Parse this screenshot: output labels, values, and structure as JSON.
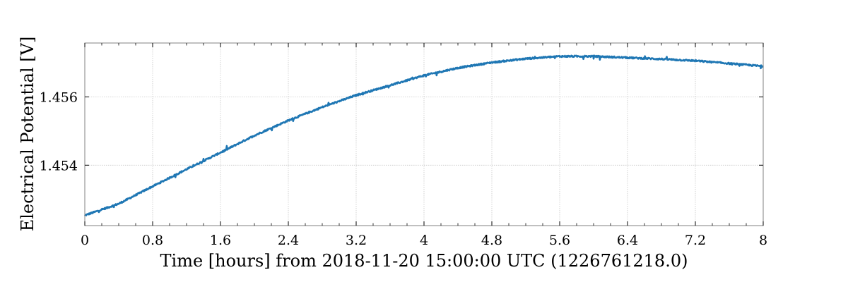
{
  "chart_data": {
    "type": "line",
    "title": "",
    "xlabel": "Time [hours] from 2018-11-20 15:00:00 UTC (1226761218.0)",
    "ylabel": "Electrical Potential [V]",
    "xlim": [
      0,
      8
    ],
    "ylim": [
      1.45223,
      1.45758
    ],
    "x_ticks": [
      0,
      0.8,
      1.6,
      2.4,
      3.2,
      4,
      4.8,
      5.6,
      6.4,
      7.2,
      8
    ],
    "x_tick_labels": [
      "0",
      "0.8",
      "1.6",
      "2.4",
      "3.2",
      "4",
      "4.8",
      "5.6",
      "6.4",
      "7.2",
      "8"
    ],
    "y_ticks": [
      1.454,
      1.456
    ],
    "y_tick_labels": [
      "1.454",
      "1.456"
    ],
    "grid": true,
    "legend": "none",
    "series": [
      {
        "color": "#1f77b4",
        "x": [
          0,
          0.4,
          0.8,
          1.2,
          1.6,
          2.0,
          2.4,
          2.8,
          3.2,
          3.6,
          4.0,
          4.4,
          4.8,
          5.2,
          5.6,
          6.0,
          6.4,
          6.8,
          7.2,
          7.6,
          8.0
        ],
        "y": [
          1.45253,
          1.45287,
          1.45338,
          1.45388,
          1.45437,
          1.45487,
          1.45531,
          1.4557,
          1.45605,
          1.45634,
          1.45663,
          1.45685,
          1.45701,
          1.45712,
          1.45719,
          1.45719,
          1.45715,
          1.45711,
          1.45706,
          1.45698,
          1.4569
        ]
      }
    ]
  }
}
